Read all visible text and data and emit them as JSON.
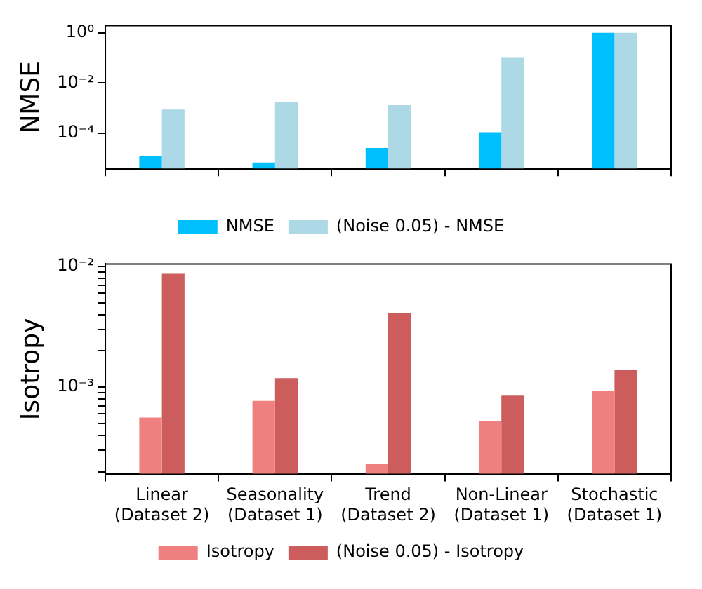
{
  "chart_data": [
    {
      "type": "bar",
      "ylabel": "NMSE",
      "categories": [
        null,
        null,
        null,
        null,
        null
      ],
      "log": true,
      "ylim": [
        3.7e-06,
        1.95
      ],
      "yticks": [
        {
          "value": 0.0001,
          "label": "10⁻⁴"
        },
        {
          "value": 0.01,
          "label": "10⁻²"
        },
        {
          "value": 1,
          "label": "10⁰"
        }
      ],
      "series": [
        {
          "name": "NMSE",
          "color": "#00bfff",
          "values": [
            1.2e-05,
            6.8e-06,
            2.6e-05,
            0.00011,
            1.0
          ]
        },
        {
          "name": "(Noise 0.05) - NMSE",
          "color": "#add8e6",
          "values": [
            0.00087,
            0.0018,
            0.0013,
            0.1,
            1.0
          ]
        }
      ],
      "legend": "bottom",
      "grid": false
    },
    {
      "type": "bar",
      "ylabel": "Isotropy",
      "categories": [
        "Linear (Dataset 2)",
        "Seasonality (Dataset 1)",
        "Trend (Dataset 2)",
        "Non-Linear (Dataset 1)",
        "Stochastic (Dataset 1)"
      ],
      "log": true,
      "ylim": [
        0.00019,
        0.0105
      ],
      "yticks": [
        {
          "value": 0.0002,
          "label": null
        },
        {
          "value": 0.0003,
          "label": null
        },
        {
          "value": 0.0004,
          "label": null
        },
        {
          "value": 0.0005,
          "label": null
        },
        {
          "value": 0.0006,
          "label": null
        },
        {
          "value": 0.0007,
          "label": null
        },
        {
          "value": 0.0008,
          "label": null
        },
        {
          "value": 0.0009,
          "label": null
        },
        {
          "value": 0.001,
          "label": "10⁻³"
        },
        {
          "value": 0.002,
          "label": null
        },
        {
          "value": 0.003,
          "label": null
        },
        {
          "value": 0.004,
          "label": null
        },
        {
          "value": 0.005,
          "label": null
        },
        {
          "value": 0.006,
          "label": null
        },
        {
          "value": 0.007,
          "label": null
        },
        {
          "value": 0.008,
          "label": null
        },
        {
          "value": 0.009,
          "label": null
        },
        {
          "value": 0.01,
          "label": "10⁻²"
        }
      ],
      "series": [
        {
          "name": "Isotropy",
          "color": "#f08080",
          "values": [
            0.00056,
            0.00077,
            0.00023,
            0.00052,
            0.00093
          ]
        },
        {
          "name": "(Noise 0.05) - Isotropy",
          "color": "#cd5c5c",
          "values": [
            0.0087,
            0.00119,
            0.0041,
            0.00085,
            0.0014
          ]
        }
      ],
      "legend": "bottom",
      "grid": false
    }
  ]
}
